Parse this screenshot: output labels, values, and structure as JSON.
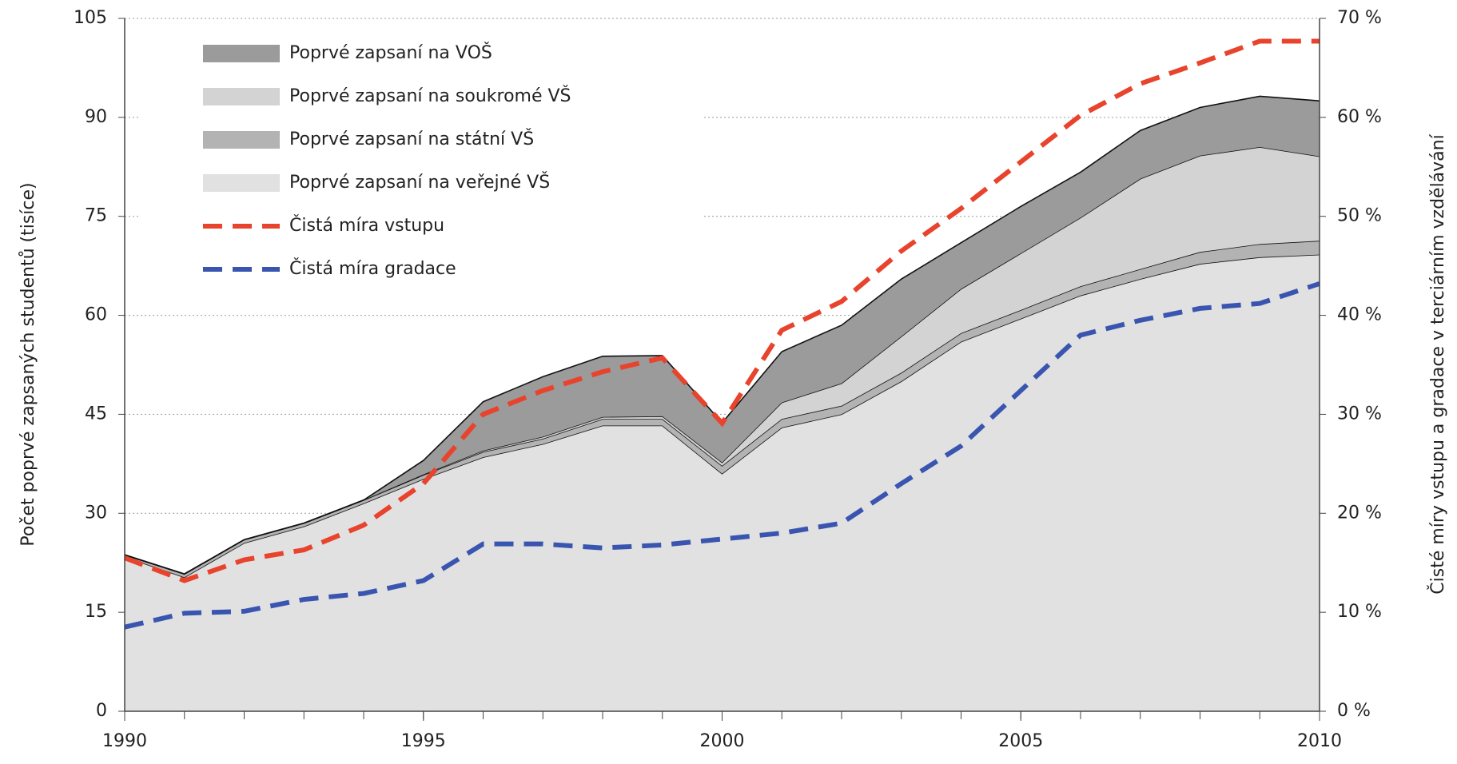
{
  "chart_data": {
    "type": "area",
    "stacked": true,
    "x": [
      1990,
      1991,
      1992,
      1993,
      1994,
      1995,
      1996,
      1997,
      1998,
      1999,
      2000,
      2001,
      2002,
      2003,
      2004,
      2005,
      2006,
      2007,
      2008,
      2009,
      2010
    ],
    "xlim": [
      1990,
      2010
    ],
    "xticks": [
      1990,
      1995,
      2000,
      2005,
      2010
    ],
    "ylim": [
      0,
      105
    ],
    "yticks": [
      0,
      15,
      30,
      45,
      60,
      75,
      90,
      105
    ],
    "y2lim": [
      0,
      70
    ],
    "y2ticks": [
      {
        "value": 0,
        "label": "0 %"
      },
      {
        "value": 10,
        "label": "10 %"
      },
      {
        "value": 20,
        "label": "20 %"
      },
      {
        "value": 30,
        "label": "30 %"
      },
      {
        "value": 40,
        "label": "40 %"
      },
      {
        "value": 50,
        "label": "50 %"
      },
      {
        "value": 60,
        "label": "60 %"
      },
      {
        "value": 70,
        "label": "70 %"
      }
    ],
    "ylabel": "Počet poprvé zapsaných studentů (tisíce)",
    "y2label": "Čisté míry vstupu a gradace v terciárním vzdělávání",
    "grid": true,
    "legend": "upper left",
    "series": [
      {
        "name": "Poprvé zapsaní na VOŠ",
        "type": "area",
        "color": "#9b9b9b",
        "values": [
          0,
          0,
          0,
          0,
          0,
          2.1,
          7.4,
          9.1,
          9.2,
          9.2,
          6.0,
          7.7,
          8.8,
          8.7,
          7.0,
          7.1,
          6.9,
          7.3,
          7.3,
          7.7,
          8.4
        ]
      },
      {
        "name": "Poprvé zapsaní na soukromé VŠ",
        "type": "area",
        "color": "#d3d3d3",
        "values": [
          0,
          0,
          0,
          0,
          0,
          0.1,
          0.2,
          0.3,
          0.3,
          0.4,
          0.5,
          2.5,
          3.4,
          5.5,
          6.7,
          8.6,
          10.4,
          13.7,
          14.6,
          14.7,
          12.8
        ]
      },
      {
        "name": "Poprvé zapsaní na státní VŠ",
        "type": "area",
        "color": "#b3b3b3",
        "values": [
          0.3,
          0.5,
          0.5,
          0.5,
          0.5,
          0.6,
          0.8,
          0.8,
          1.0,
          1.0,
          1.2,
          1.3,
          1.3,
          1.3,
          1.3,
          1.3,
          1.4,
          1.5,
          1.8,
          2.0,
          2.1
        ]
      },
      {
        "name": "Poprvé zapsaní na veřejné VŠ",
        "type": "area",
        "color": "#e1e1e1",
        "values": [
          23.4,
          20.3,
          25.5,
          28,
          31.5,
          35.2,
          38.5,
          40.5,
          43.3,
          43.3,
          36,
          43,
          45,
          50,
          56,
          59.5,
          63,
          65.5,
          67.8,
          68.8,
          69.2
        ]
      },
      {
        "name": "Čistá míra vstupu",
        "type": "line",
        "axis": "y2",
        "color": "#e8432c",
        "values": [
          15.5,
          13.2,
          15.3,
          16.3,
          18.8,
          23,
          30,
          32.4,
          34.3,
          35.7,
          29.1,
          38.5,
          41.4,
          46.5,
          50.8,
          55.5,
          60.2,
          63.4,
          65.5,
          67.7,
          67.7
        ]
      },
      {
        "name": "Čistá míra gradace",
        "type": "line",
        "axis": "y2",
        "color": "#3a55b0",
        "values": [
          8.5,
          9.9,
          10.1,
          11.3,
          11.9,
          13.2,
          16.9,
          16.9,
          16.5,
          16.8,
          17.4,
          18.0,
          19.0,
          23,
          26.8,
          32.4,
          38,
          39.5,
          40.7,
          41.2,
          43.2
        ]
      }
    ]
  }
}
